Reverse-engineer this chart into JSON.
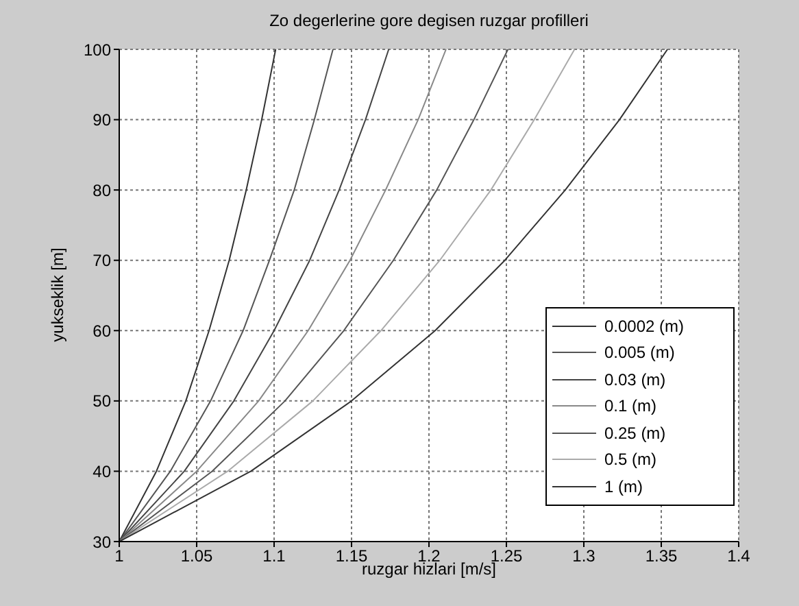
{
  "chart_data": {
    "type": "line",
    "title": "Zo degerlerine gore degisen ruzgar profilleri",
    "xlabel": "ruzgar hizlari [m/s]",
    "ylabel": "yukseklik [m]",
    "xlim": [
      1,
      1.4
    ],
    "xticks": [
      1,
      1.05,
      1.1,
      1.15,
      1.2,
      1.25,
      1.3,
      1.35,
      1.4
    ],
    "ylim": [
      30,
      100
    ],
    "yticks": [
      30,
      40,
      50,
      60,
      70,
      80,
      90,
      100
    ],
    "grid": true,
    "legend": "right",
    "marker": "none",
    "line_style": "solid",
    "series": [
      {
        "name": "0.0002 (m)",
        "color": "#333333",
        "x": [
          1,
          1.024,
          1.043,
          1.058,
          1.071,
          1.082,
          1.092,
          1.101
        ],
        "values": [
          30,
          40,
          50,
          60,
          70,
          80,
          90,
          100
        ]
      },
      {
        "name": "0.005 (m)",
        "color": "#555555",
        "x": [
          1,
          1.033,
          1.059,
          1.08,
          1.097,
          1.113,
          1.126,
          1.138
        ],
        "values": [
          30,
          40,
          50,
          60,
          70,
          80,
          90,
          100
        ]
      },
      {
        "name": "0.03 (m)",
        "color": "#444444",
        "x": [
          1,
          1.042,
          1.074,
          1.1,
          1.123,
          1.142,
          1.159,
          1.174
        ],
        "values": [
          30,
          40,
          50,
          60,
          70,
          80,
          90,
          100
        ]
      },
      {
        "name": "0.1 (m)",
        "color": "#888888",
        "x": [
          1,
          1.05,
          1.09,
          1.122,
          1.149,
          1.172,
          1.193,
          1.211
        ],
        "values": [
          30,
          40,
          50,
          60,
          70,
          80,
          90,
          100
        ]
      },
      {
        "name": "0.25 (m)",
        "color": "#555555",
        "x": [
          1,
          1.06,
          1.107,
          1.145,
          1.177,
          1.205,
          1.229,
          1.251
        ],
        "values": [
          30,
          40,
          50,
          60,
          70,
          80,
          90,
          100
        ]
      },
      {
        "name": "0.5 (m)",
        "color": "#aaaaaa",
        "x": [
          1,
          1.07,
          1.125,
          1.169,
          1.207,
          1.24,
          1.268,
          1.294
        ],
        "values": [
          30,
          40,
          50,
          60,
          70,
          80,
          90,
          100
        ]
      },
      {
        "name": "1 (m)",
        "color": "#333333",
        "x": [
          1,
          1.085,
          1.15,
          1.204,
          1.249,
          1.288,
          1.323,
          1.354
        ],
        "values": [
          30,
          40,
          50,
          60,
          70,
          80,
          90,
          100
        ]
      }
    ]
  }
}
